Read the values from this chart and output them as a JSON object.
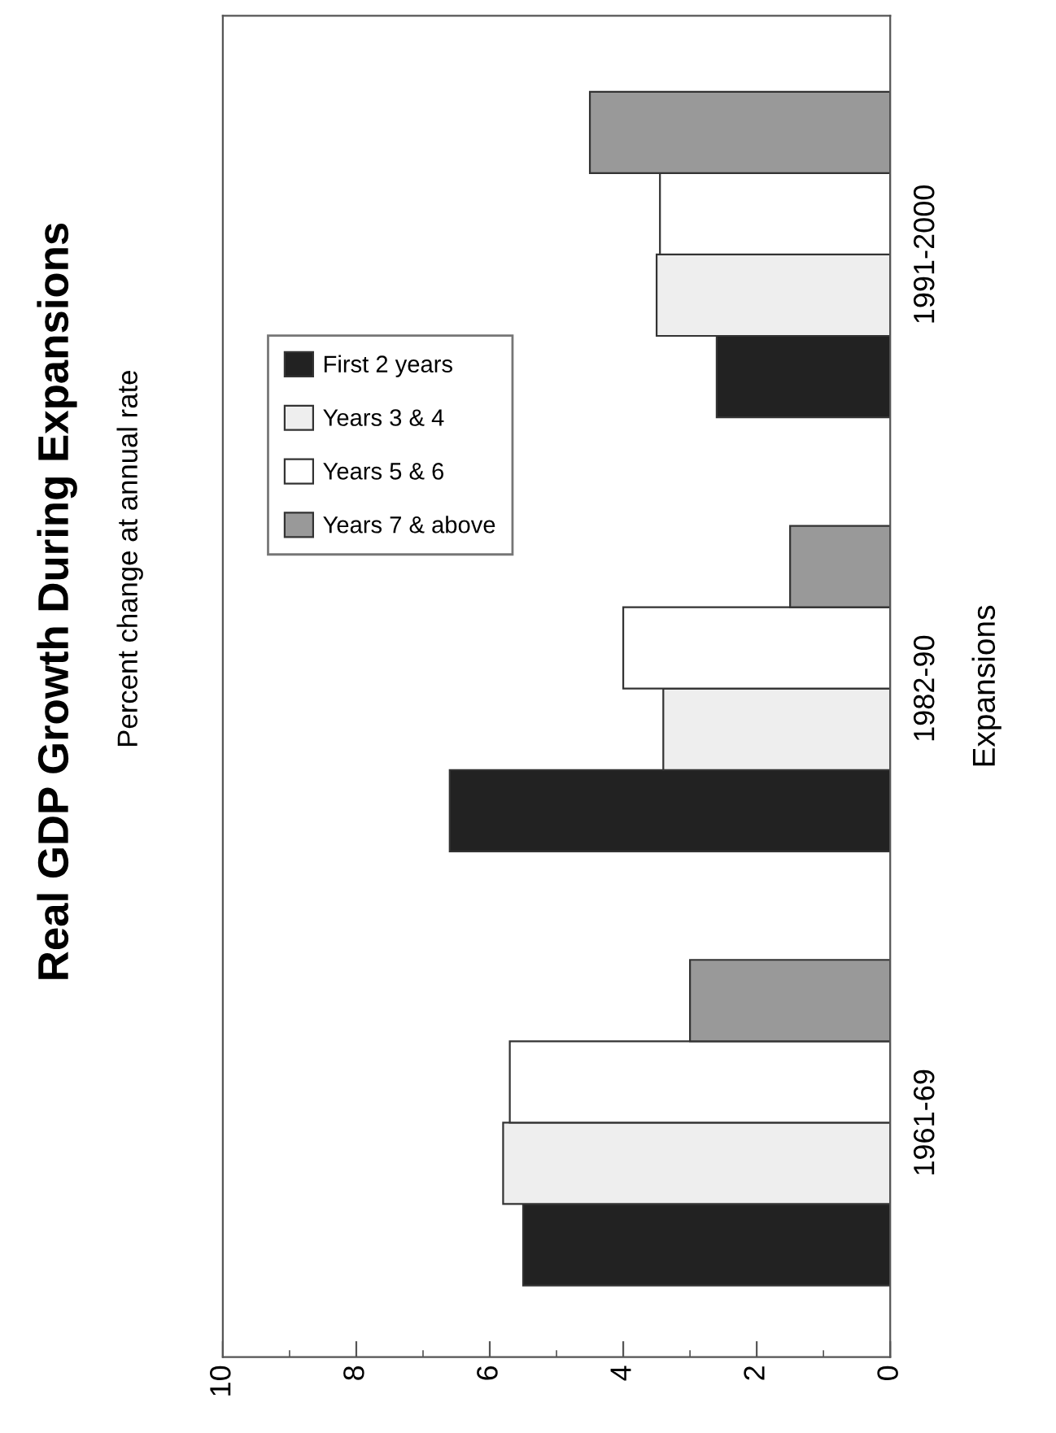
{
  "chart_data": {
    "type": "bar",
    "orientation": "horizontal",
    "title": "Real GDP Growth During Expansions",
    "subtitle": "Percent change at annual rate",
    "ylabel": "Expansions",
    "categories": [
      "1991-2000",
      "1982-90",
      "1961-69"
    ],
    "series": [
      {
        "name": "First 2 years",
        "color": "#222222",
        "values": [
          2.6,
          6.6,
          5.5
        ]
      },
      {
        "name": "Years 3 & 4",
        "color": "#eeeeee",
        "values": [
          3.5,
          3.4,
          5.8
        ]
      },
      {
        "name": "Years 5 & 6",
        "color": "#ffffff",
        "values": [
          3.45,
          4.0,
          5.7
        ]
      },
      {
        "name": "Years 7 & above",
        "color": "#999999",
        "values": [
          4.5,
          1.5,
          3.0
        ]
      }
    ],
    "xlim": [
      10,
      0
    ],
    "xticks": [
      0,
      2,
      4,
      6,
      8,
      10
    ],
    "grid": false,
    "legend": "left"
  }
}
